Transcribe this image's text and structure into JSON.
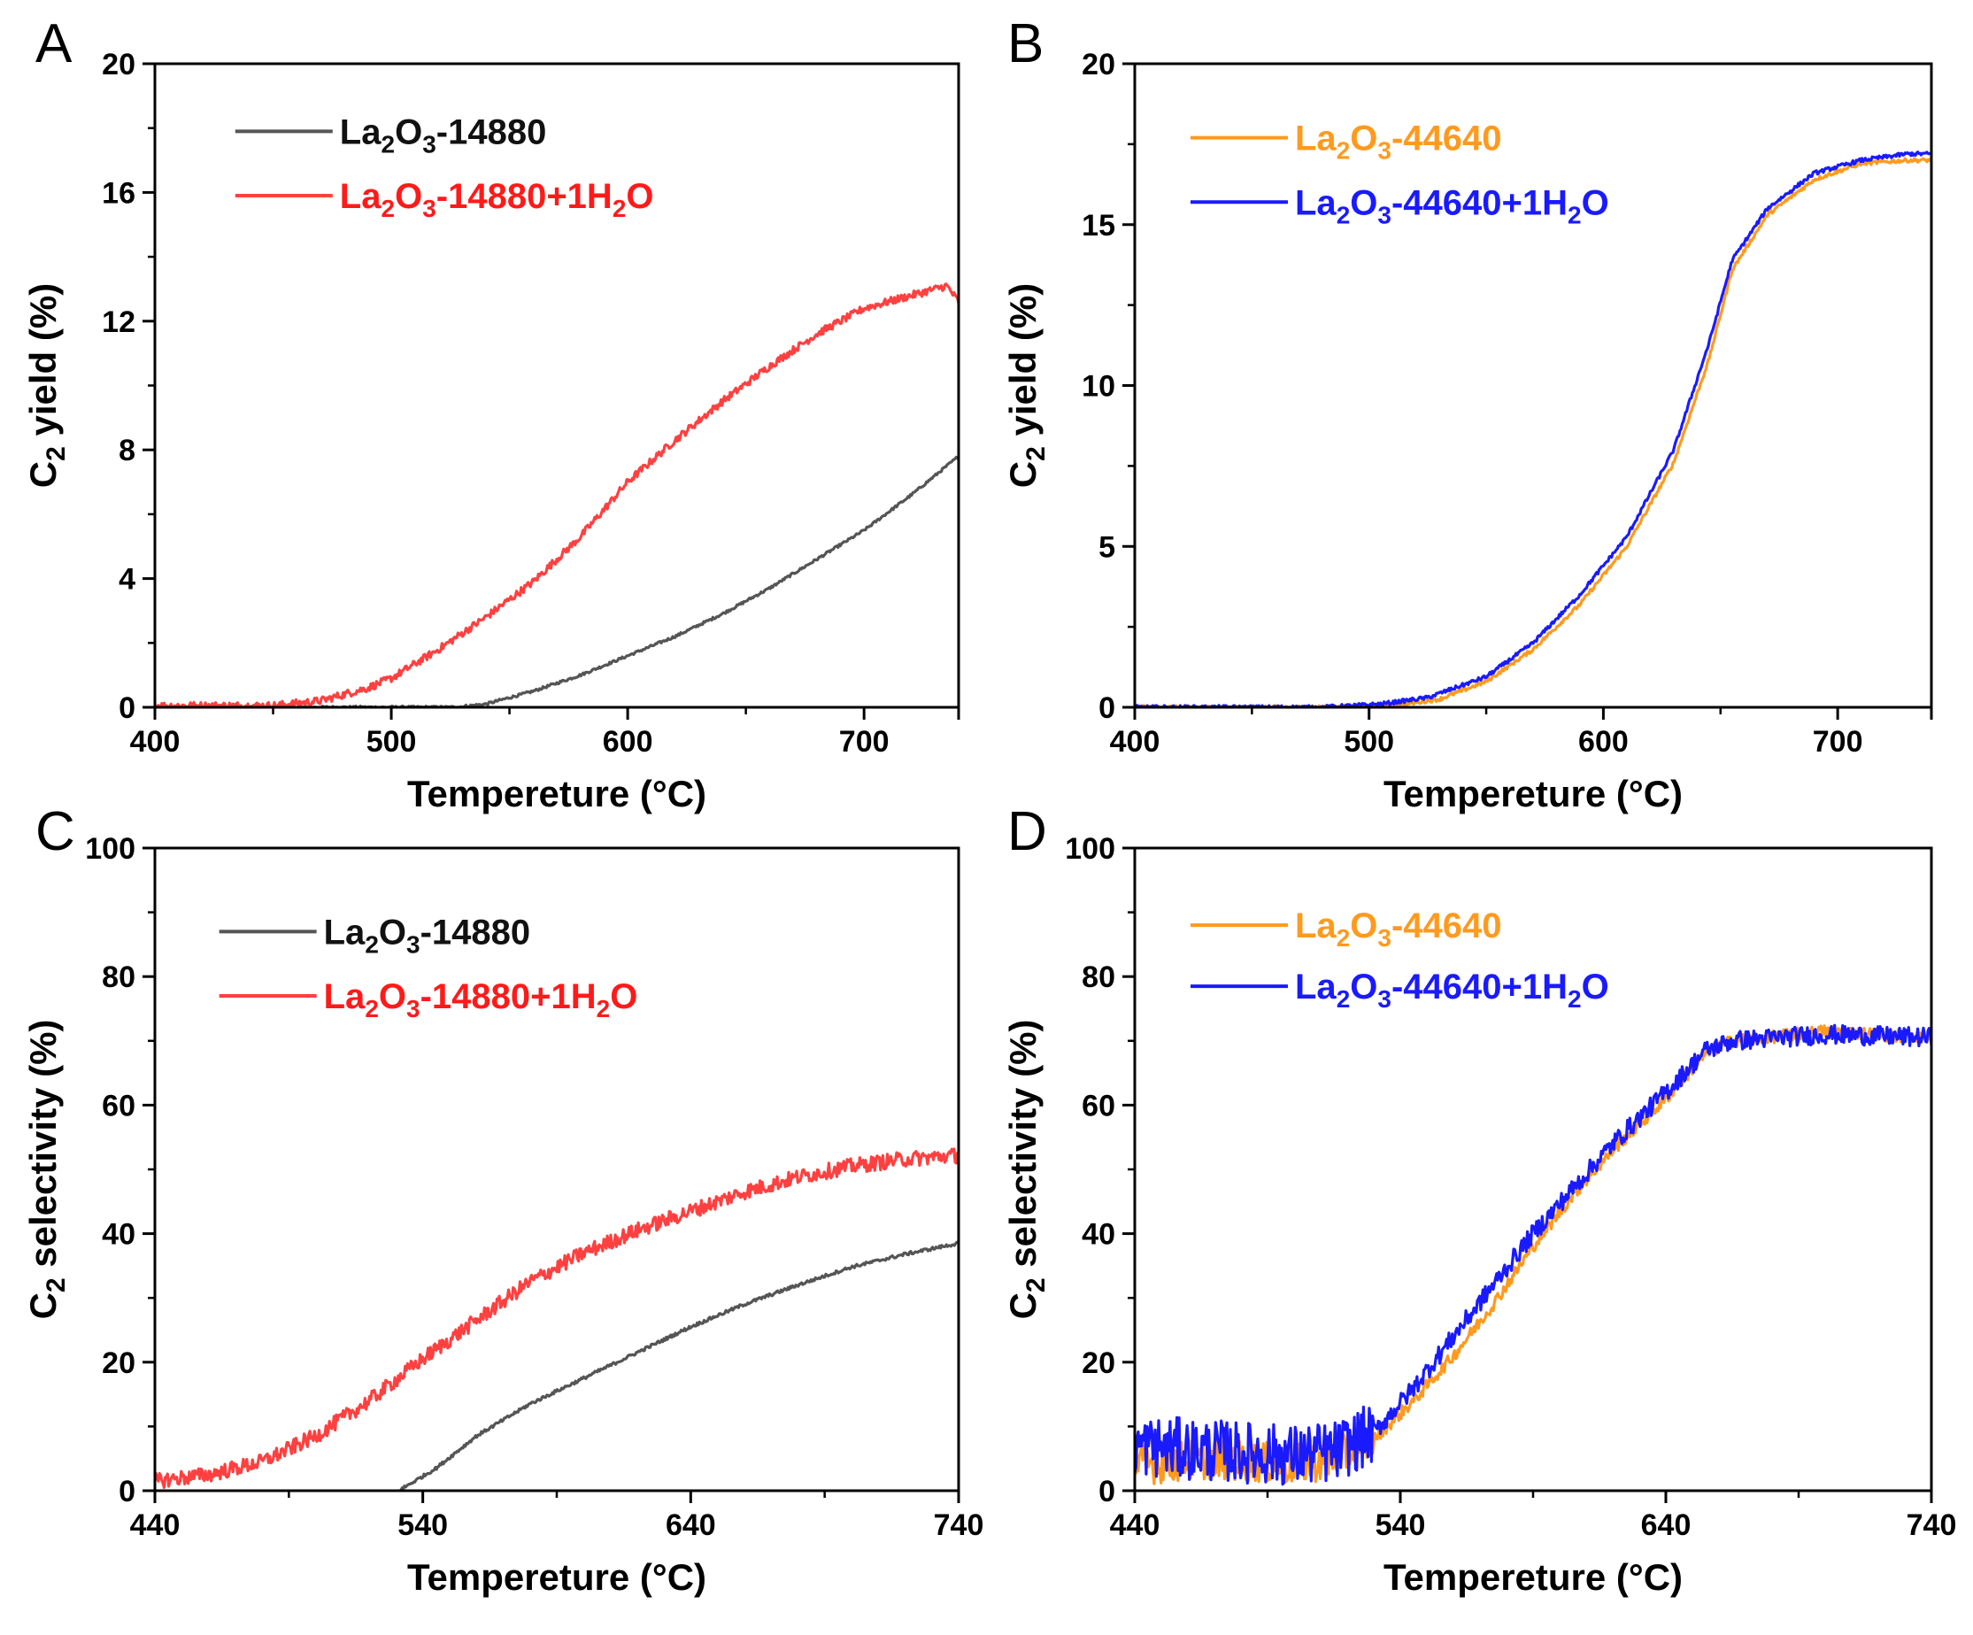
{
  "figure": {
    "panels": [
      {
        "letter": "A",
        "type": "line",
        "xlabel": "Tempereture (°C)",
        "ylabel_main": "C",
        "ylabel_sub": "2",
        "ylabel_rest": " yield (%)",
        "xlim": [
          400,
          740
        ],
        "ylim": [
          0,
          20
        ],
        "xticks": [
          400,
          500,
          600,
          700
        ],
        "xminor": [
          450,
          550,
          650
        ],
        "yticks": [
          0,
          4,
          8,
          12,
          16,
          20
        ],
        "yminor": [
          2,
          6,
          10,
          14,
          18
        ],
        "legend": {
          "position": "top-left",
          "x_frac": 0.1,
          "y_frac": [
            0.105,
            0.205
          ]
        },
        "series": [
          {
            "name": "La2O3-14880",
            "label_parts": [
              [
                "La",
                ""
              ],
              [
                "2",
                "sub"
              ],
              [
                "O",
                ""
              ],
              [
                "3",
                "sub"
              ],
              [
                "-14880",
                ""
              ]
            ],
            "color": "#555555",
            "noise": 0.04,
            "points": [
              [
                400,
                0
              ],
              [
                500,
                0
              ],
              [
                527,
                0
              ],
              [
                540,
                0.1
              ],
              [
                560,
                0.5
              ],
              [
                580,
                1.0
              ],
              [
                600,
                1.6
              ],
              [
                620,
                2.2
              ],
              [
                640,
                2.9
              ],
              [
                660,
                3.7
              ],
              [
                680,
                4.6
              ],
              [
                700,
                5.5
              ],
              [
                720,
                6.6
              ],
              [
                740,
                7.8
              ]
            ]
          },
          {
            "name": "La2O3-14880+1H2O",
            "label_parts": [
              [
                "La",
                ""
              ],
              [
                "2",
                "sub"
              ],
              [
                "O",
                ""
              ],
              [
                "3",
                "sub"
              ],
              [
                "-14880+1H",
                ""
              ],
              [
                "2",
                "sub"
              ],
              [
                "O",
                ""
              ]
            ],
            "color": "#ff4040",
            "noise": 0.12,
            "points": [
              [
                400,
                0.05
              ],
              [
                450,
                0.05
              ],
              [
                470,
                0.2
              ],
              [
                490,
                0.6
              ],
              [
                500,
                0.9
              ],
              [
                520,
                1.8
              ],
              [
                540,
                2.8
              ],
              [
                560,
                3.9
              ],
              [
                580,
                5.3
              ],
              [
                600,
                7.0
              ],
              [
                620,
                8.3
              ],
              [
                640,
                9.5
              ],
              [
                660,
                10.6
              ],
              [
                680,
                11.6
              ],
              [
                700,
                12.4
              ],
              [
                720,
                12.8
              ],
              [
                735,
                13.1
              ],
              [
                740,
                12.6
              ]
            ]
          }
        ]
      },
      {
        "letter": "B",
        "type": "line",
        "xlabel": "Tempereture (°C)",
        "ylabel_main": "C",
        "ylabel_sub": "2",
        "ylabel_rest": " yield (%)",
        "xlim": [
          400,
          740
        ],
        "ylim": [
          0,
          20
        ],
        "xticks": [
          400,
          500,
          600,
          700
        ],
        "xminor": [
          450,
          550,
          650
        ],
        "yticks": [
          0,
          5,
          10,
          15,
          20
        ],
        "yminor": [
          2.5,
          7.5,
          12.5,
          17.5
        ],
        "legend": {
          "position": "top-left",
          "x_frac": 0.07,
          "y_frac": [
            0.115,
            0.215
          ]
        },
        "series": [
          {
            "name": "La2O3-44640",
            "label_parts": [
              [
                "La",
                ""
              ],
              [
                "2",
                "sub"
              ],
              [
                "O",
                ""
              ],
              [
                "3",
                "sub"
              ],
              [
                "-44640",
                ""
              ]
            ],
            "color": "#ff9a1e",
            "noise": 0.06,
            "points": [
              [
                400,
                0
              ],
              [
                480,
                0
              ],
              [
                510,
                0.05
              ],
              [
                530,
                0.25
              ],
              [
                550,
                0.8
              ],
              [
                570,
                1.8
              ],
              [
                590,
                3.2
              ],
              [
                610,
                5.0
              ],
              [
                630,
                7.6
              ],
              [
                645,
                10.8
              ],
              [
                655,
                13.6
              ],
              [
                670,
                15.3
              ],
              [
                690,
                16.4
              ],
              [
                710,
                16.9
              ],
              [
                730,
                17.0
              ],
              [
                740,
                17.0
              ]
            ]
          },
          {
            "name": "La2O3-44640+1H2O",
            "label_parts": [
              [
                "La",
                ""
              ],
              [
                "2",
                "sub"
              ],
              [
                "O",
                ""
              ],
              [
                "3",
                "sub"
              ],
              [
                "-44640+1H",
                ""
              ],
              [
                "2",
                "sub"
              ],
              [
                "O",
                ""
              ]
            ],
            "color": "#1a1aff",
            "noise": 0.06,
            "points": [
              [
                400,
                0
              ],
              [
                480,
                0
              ],
              [
                505,
                0.1
              ],
              [
                525,
                0.3
              ],
              [
                550,
                0.95
              ],
              [
                570,
                2.0
              ],
              [
                590,
                3.5
              ],
              [
                610,
                5.3
              ],
              [
                630,
                8.0
              ],
              [
                645,
                11.3
              ],
              [
                655,
                13.9
              ],
              [
                670,
                15.5
              ],
              [
                690,
                16.6
              ],
              [
                710,
                17.0
              ],
              [
                730,
                17.2
              ],
              [
                740,
                17.2
              ]
            ]
          }
        ]
      },
      {
        "letter": "C",
        "type": "line",
        "xlabel": "Tempereture (°C)",
        "ylabel_main": "C",
        "ylabel_sub": "2",
        "ylabel_rest": " selectivity (%)",
        "xlim": [
          440,
          740
        ],
        "ylim": [
          0,
          100
        ],
        "xticks": [
          440,
          540,
          640,
          740
        ],
        "xminor": [
          490,
          590,
          690
        ],
        "yticks": [
          0,
          20,
          40,
          60,
          80,
          100
        ],
        "yminor": [
          10,
          30,
          50,
          70,
          90
        ],
        "legend": {
          "position": "top-left",
          "x_frac": 0.08,
          "y_frac": [
            0.13,
            0.23
          ]
        },
        "series": [
          {
            "name": "La2O3-14880",
            "label_parts": [
              [
                "La",
                ""
              ],
              [
                "2",
                "sub"
              ],
              [
                "O",
                ""
              ],
              [
                "3",
                "sub"
              ],
              [
                "-14880",
                ""
              ]
            ],
            "color": "#555555",
            "noise": 0.25,
            "points": [
              [
                531,
                0
              ],
              [
                545,
                3.5
              ],
              [
                560,
                8.5
              ],
              [
                580,
                13.5
              ],
              [
                600,
                17.5
              ],
              [
                620,
                21.5
              ],
              [
                640,
                25.5
              ],
              [
                660,
                29.0
              ],
              [
                680,
                32.0
              ],
              [
                700,
                34.8
              ],
              [
                720,
                36.8
              ],
              [
                740,
                38.5
              ]
            ]
          },
          {
            "name": "La2O3-14880+1H2O",
            "label_parts": [
              [
                "La",
                ""
              ],
              [
                "2",
                "sub"
              ],
              [
                "O",
                ""
              ],
              [
                "3",
                "sub"
              ],
              [
                "-14880+1H",
                ""
              ],
              [
                "2",
                "sub"
              ],
              [
                "O",
                ""
              ]
            ],
            "color": "#ff4040",
            "noise": 1.2,
            "points": [
              [
                440,
                1.5
              ],
              [
                460,
                2.5
              ],
              [
                480,
                4.5
              ],
              [
                500,
                8.5
              ],
              [
                520,
                14.0
              ],
              [
                540,
                20.5
              ],
              [
                560,
                26.5
              ],
              [
                580,
                32.5
              ],
              [
                600,
                37.0
              ],
              [
                620,
                40.5
              ],
              [
                640,
                43.5
              ],
              [
                660,
                46.5
              ],
              [
                680,
                48.8
              ],
              [
                700,
                50.5
              ],
              [
                720,
                51.6
              ],
              [
                740,
                52.2
              ]
            ]
          }
        ]
      },
      {
        "letter": "D",
        "type": "line",
        "xlabel": "Tempereture (°C)",
        "ylabel_main": "C",
        "ylabel_sub": "2",
        "ylabel_rest": " selectivity (%)",
        "xlim": [
          440,
          740
        ],
        "ylim": [
          0,
          100
        ],
        "xticks": [
          440,
          540,
          640,
          740
        ],
        "xminor": [
          490,
          590,
          690
        ],
        "yticks": [
          0,
          20,
          40,
          60,
          80,
          100
        ],
        "yminor": [
          10,
          30,
          50,
          70,
          90
        ],
        "legend": {
          "position": "top-left",
          "x_frac": 0.07,
          "y_frac": [
            0.12,
            0.215
          ]
        },
        "series": [
          {
            "name": "La2O3-44640",
            "label_parts": [
              [
                "La",
                ""
              ],
              [
                "2",
                "sub"
              ],
              [
                "O",
                ""
              ],
              [
                "3",
                "sub"
              ],
              [
                "-44640",
                ""
              ]
            ],
            "color": "#ff9a1e",
            "noise": 1.0,
            "points": [
              [
                440,
                4
              ],
              [
                470,
                5
              ],
              [
                500,
                4
              ],
              [
                515,
                5
              ],
              [
                530,
                8
              ],
              [
                545,
                14
              ],
              [
                560,
                21
              ],
              [
                575,
                29
              ],
              [
                590,
                38
              ],
              [
                605,
                46
              ],
              [
                620,
                53
              ],
              [
                640,
                61
              ],
              [
                655,
                68
              ],
              [
                665,
                70
              ],
              [
                700,
                71.5
              ],
              [
                740,
                70.5
              ]
            ]
          },
          {
            "name": "La2O3-44640+1H2O",
            "label_parts": [
              [
                "La",
                ""
              ],
              [
                "2",
                "sub"
              ],
              [
                "O",
                ""
              ],
              [
                "3",
                "sub"
              ],
              [
                "-44640+1H",
                ""
              ],
              [
                "2",
                "sub"
              ],
              [
                "O",
                ""
              ]
            ],
            "color": "#1a1aff",
            "noise": 1.5,
            "points": [
              [
                440,
                7
              ],
              [
                460,
                6.5
              ],
              [
                480,
                6
              ],
              [
                500,
                5.5
              ],
              [
                515,
                6
              ],
              [
                530,
                9
              ],
              [
                545,
                16
              ],
              [
                560,
                24
              ],
              [
                575,
                32
              ],
              [
                590,
                40
              ],
              [
                605,
                47
              ],
              [
                620,
                54
              ],
              [
                640,
                62
              ],
              [
                655,
                68.5
              ],
              [
                665,
                70
              ],
              [
                700,
                71
              ],
              [
                740,
                70.5
              ]
            ]
          }
        ]
      }
    ]
  }
}
